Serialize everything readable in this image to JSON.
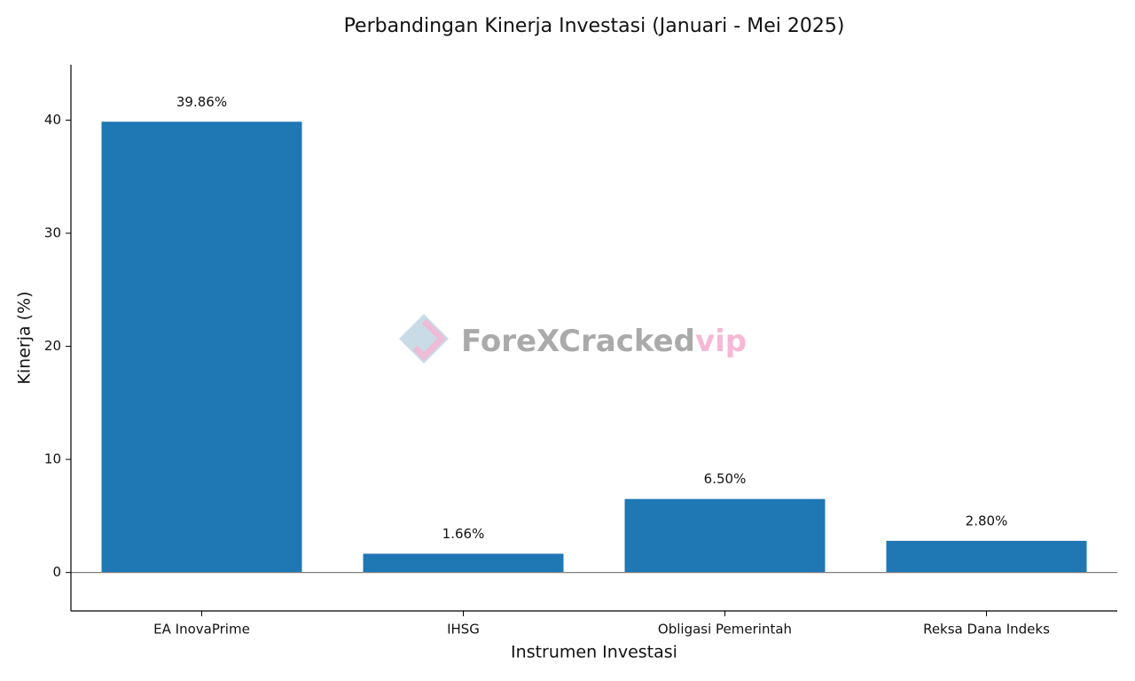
{
  "chart_data": {
    "type": "bar",
    "title": "Perbandingan Kinerja Investasi (Januari - Mei 2025)",
    "x_label": "Instrumen Investasi",
    "y_label": "Kinerja (%)",
    "categories": [
      "EA InovaPrime",
      "IHSG",
      "Obligasi Pemerintah",
      "Reksa Dana Indeks"
    ],
    "values": [
      39.86,
      1.66,
      6.5,
      2.8
    ],
    "value_labels": [
      "39.86%",
      "1.66%",
      "6.50%",
      "2.80%"
    ],
    "color": "#1f77b4",
    "ylim": [
      -3.4,
      44.9
    ],
    "yticks": [
      0,
      10,
      20,
      30,
      40
    ],
    "zero_line": true,
    "grid": false,
    "watermark": [
      "ForeXCracked",
      "vip"
    ]
  }
}
